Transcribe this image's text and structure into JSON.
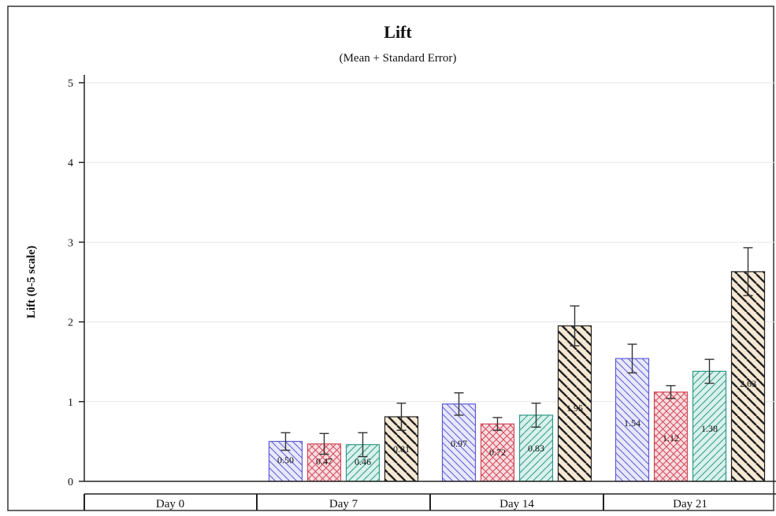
{
  "chart_data": {
    "type": "bar",
    "title": "Lift",
    "subtitle": "(Mean + Standard Error)",
    "ylabel": "Lift (0-5 scale)",
    "xlabel": "",
    "ylim": [
      0,
      5
    ],
    "yticks": [
      "0",
      "1",
      "2",
      "3",
      "4",
      "5"
    ],
    "grid": true,
    "categories": [
      "Day 0",
      "Day 7",
      "Day 14",
      "Day 21"
    ],
    "series": [
      {
        "values": [
          null,
          0.5,
          0.97,
          1.54
        ],
        "errors": [
          null,
          0.11,
          0.14,
          0.18
        ],
        "labels": [
          "",
          "0.50",
          "0.97",
          "1.54"
        ],
        "color": "#5b5bd6",
        "fill": "#e8e8fb",
        "pattern": "diag-right"
      },
      {
        "values": [
          null,
          0.47,
          0.72,
          1.12
        ],
        "errors": [
          null,
          0.13,
          0.08,
          0.08
        ],
        "labels": [
          "",
          "0.47",
          "0.72",
          "1.12"
        ],
        "color": "#d44a5a",
        "fill": "#f7dde1",
        "pattern": "crosshatch"
      },
      {
        "values": [
          null,
          0.46,
          0.83,
          1.38
        ],
        "errors": [
          null,
          0.15,
          0.15,
          0.15
        ],
        "labels": [
          "",
          "0.46",
          "0.83",
          "1.38"
        ],
        "color": "#2f9a86",
        "fill": "#d9f1ec",
        "pattern": "diag-left"
      },
      {
        "values": [
          null,
          0.81,
          1.95,
          2.63
        ],
        "errors": [
          null,
          0.17,
          0.25,
          0.3
        ],
        "labels": [
          "",
          "0.81",
          "1.95",
          "2.63"
        ],
        "color": "#222222",
        "fill": "#f6e8d4",
        "pattern": "diag-heavy"
      }
    ]
  }
}
